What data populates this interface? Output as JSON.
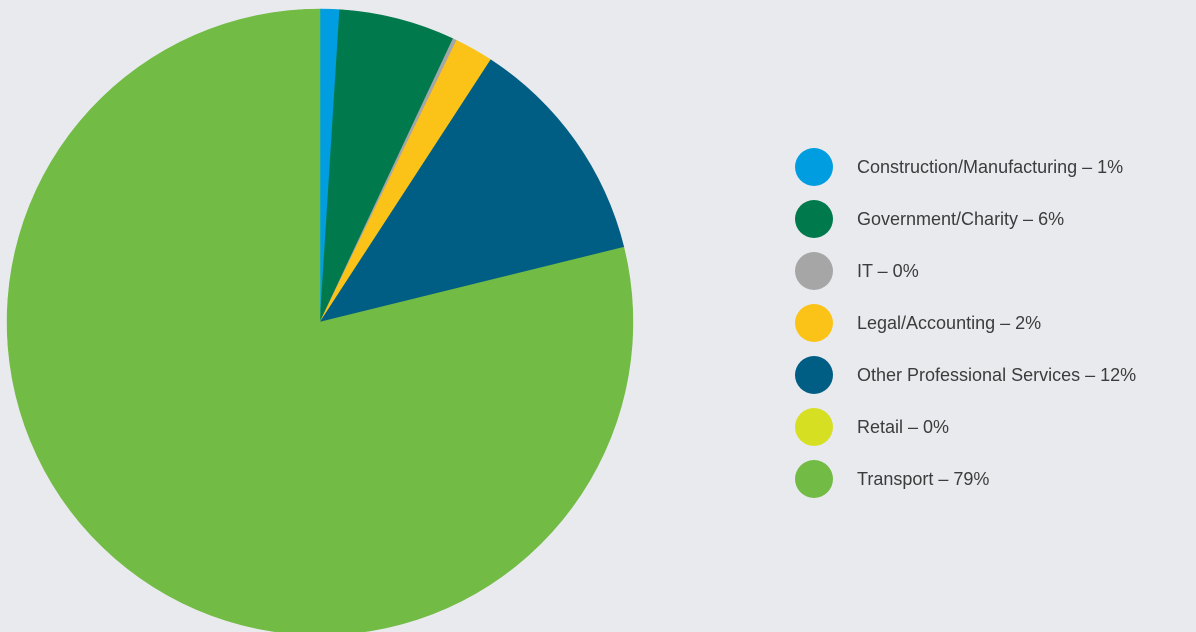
{
  "chart_data": {
    "type": "pie",
    "title": "",
    "start_angle_deg": 0,
    "direction": "clockwise",
    "slices": [
      {
        "label": "Construction/Manufacturing – 1%",
        "category": "Construction/Manufacturing",
        "value": 1,
        "color": "#009ee0"
      },
      {
        "label": "Government/Charity – 6%",
        "category": "Government/Charity",
        "value": 6,
        "color": "#007a4d"
      },
      {
        "label": "IT – 0%",
        "category": "IT",
        "value": 0.2,
        "color": "#a6a6a6"
      },
      {
        "label": "Legal/Accounting – 2%",
        "category": "Legal/Accounting",
        "value": 2,
        "color": "#fbc317"
      },
      {
        "label": "Other Professional Services – 12%",
        "category": "Other Professional Services",
        "value": 12,
        "color": "#005e85"
      },
      {
        "label": "Retail – 0%",
        "category": "Retail",
        "value": 0,
        "color": "#d7df23"
      },
      {
        "label": "Transport – 79%",
        "category": "Transport",
        "value": 79,
        "color": "#72bb44"
      }
    ],
    "legend_position": "right"
  }
}
